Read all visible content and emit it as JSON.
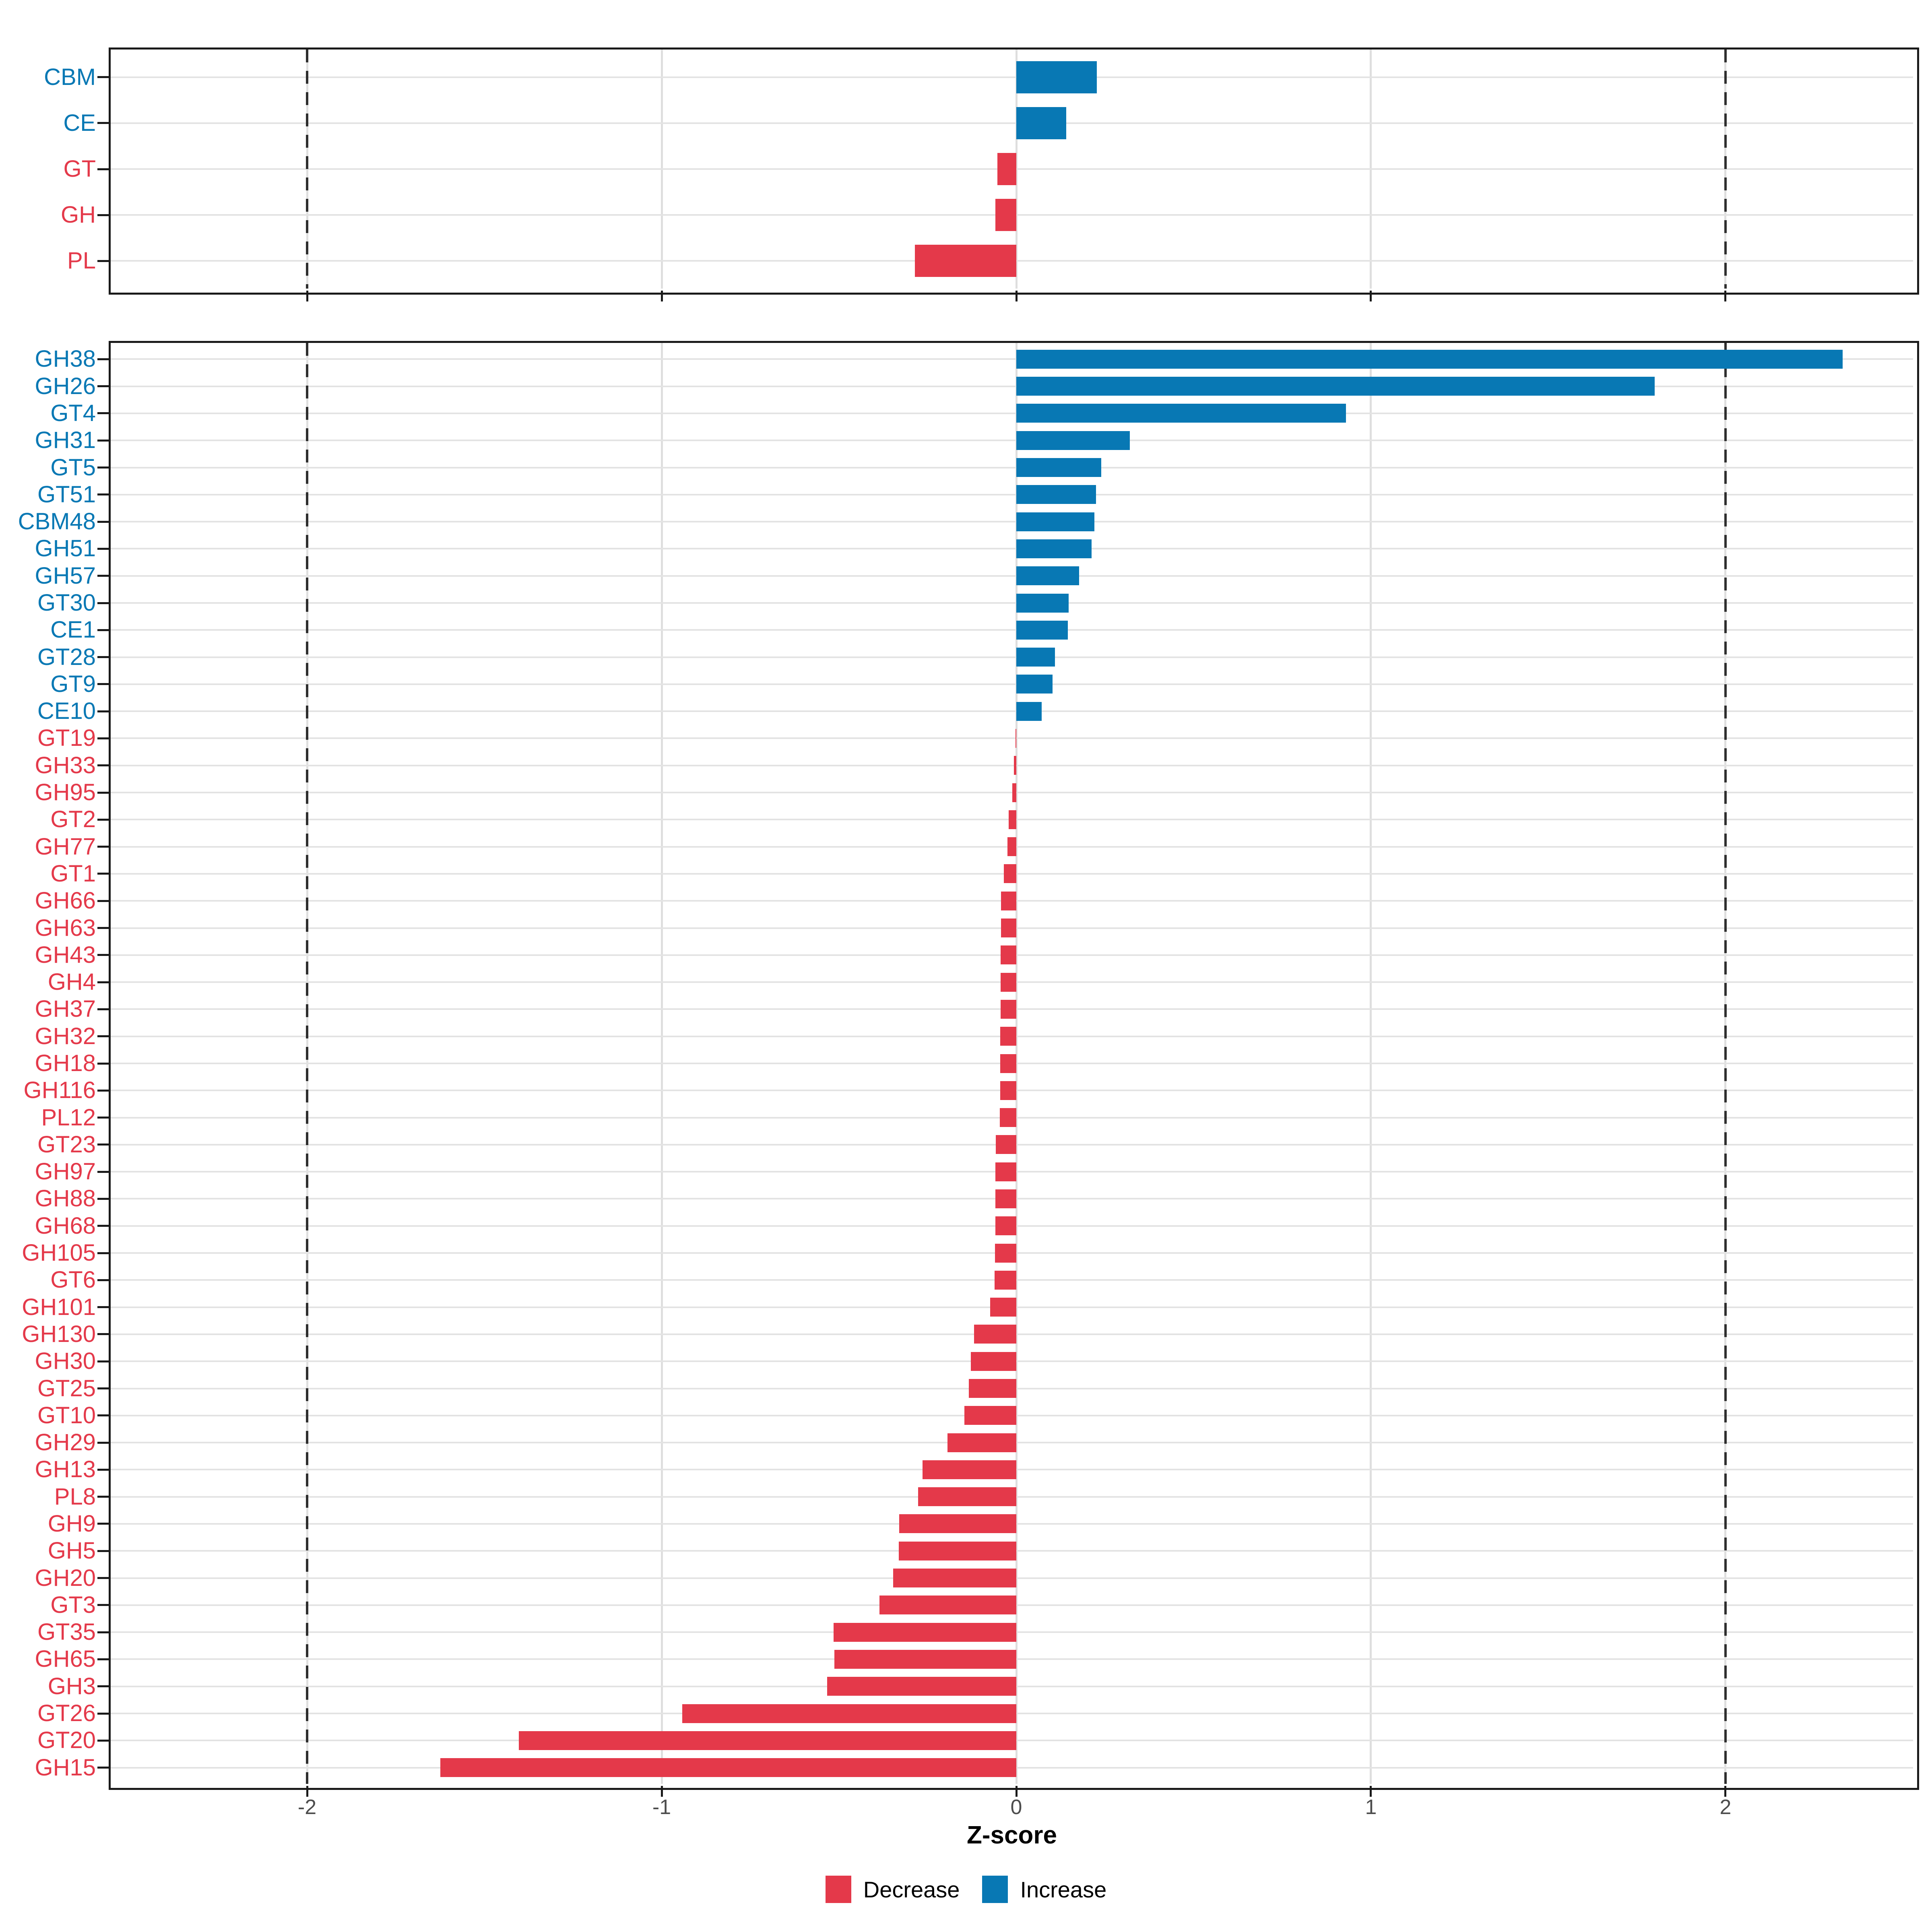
{
  "axis": {
    "xlabel": "Z-score",
    "ticks": [
      -2,
      -1,
      0,
      1,
      2
    ],
    "xlim": [
      -2.554,
      2.529
    ],
    "reference_lines": [
      -2,
      2
    ]
  },
  "legend": {
    "items": [
      {
        "label": "Decrease",
        "color": "#E4394A"
      },
      {
        "label": "Increase",
        "color": "#0878B4"
      }
    ]
  },
  "colors": {
    "increase": "#0878B4",
    "decrease": "#E4394A",
    "grid_h": "#E3E3E3",
    "grid_v": "#DEDEDE",
    "ref_line": "#2E2E2E",
    "panel_border": "#1A1A1A",
    "tick": "#1A1A1A",
    "tick_label": "#4D4D4D",
    "axis_title": "#000000"
  },
  "chart_data": [
    {
      "type": "bar",
      "orientation": "horizontal",
      "panel": "enzyme-class",
      "title": "",
      "xlabel": "Z-score",
      "ylabel": "",
      "legend_position": "bottom",
      "color_rule": "positive values = Increase (blue), negative values = Decrease (red)",
      "categories": [
        "CBM",
        "CE",
        "GT",
        "GH",
        "PL"
      ],
      "values": [
        0.227,
        0.141,
        -0.053,
        -0.059,
        -0.286
      ]
    },
    {
      "type": "bar",
      "orientation": "horizontal",
      "panel": "cazyme-family",
      "title": "",
      "xlabel": "Z-score",
      "ylabel": "",
      "legend_position": "bottom",
      "color_rule": "positive values = Increase (blue), negative values = Decrease (red)",
      "categories": [
        "GH38",
        "GH26",
        "GT4",
        "GH31",
        "GT5",
        "GT51",
        "CBM48",
        "GH51",
        "GH57",
        "GT30",
        "CE1",
        "GT28",
        "GT9",
        "CE10",
        "GT19",
        "GH33",
        "GH95",
        "GT2",
        "GH77",
        "GT1",
        "GH66",
        "GH63",
        "GH43",
        "GH4",
        "GH37",
        "GH32",
        "GH18",
        "GH116",
        "PL12",
        "GT23",
        "GH97",
        "GH88",
        "GH68",
        "GH105",
        "GT6",
        "GH101",
        "GH130",
        "GH30",
        "GT25",
        "GT10",
        "GH29",
        "GH13",
        "PL8",
        "GH9",
        "GH5",
        "GH20",
        "GT3",
        "GT35",
        "GH65",
        "GH3",
        "GT26",
        "GT20",
        "GH15"
      ],
      "values": [
        2.33,
        1.8,
        0.93,
        0.32,
        0.24,
        0.225,
        0.22,
        0.212,
        0.177,
        0.148,
        0.145,
        0.109,
        0.102,
        0.072,
        -0.002,
        -0.007,
        -0.011,
        -0.022,
        -0.025,
        -0.035,
        -0.043,
        -0.043,
        -0.044,
        -0.044,
        -0.044,
        -0.045,
        -0.045,
        -0.045,
        -0.046,
        -0.058,
        -0.059,
        -0.059,
        -0.059,
        -0.06,
        -0.061,
        -0.074,
        -0.119,
        -0.128,
        -0.134,
        -0.147,
        -0.194,
        -0.265,
        -0.277,
        -0.33,
        -0.331,
        -0.347,
        -0.386,
        -0.515,
        -0.513,
        -0.534,
        -0.942,
        -1.403,
        -1.624
      ]
    }
  ]
}
